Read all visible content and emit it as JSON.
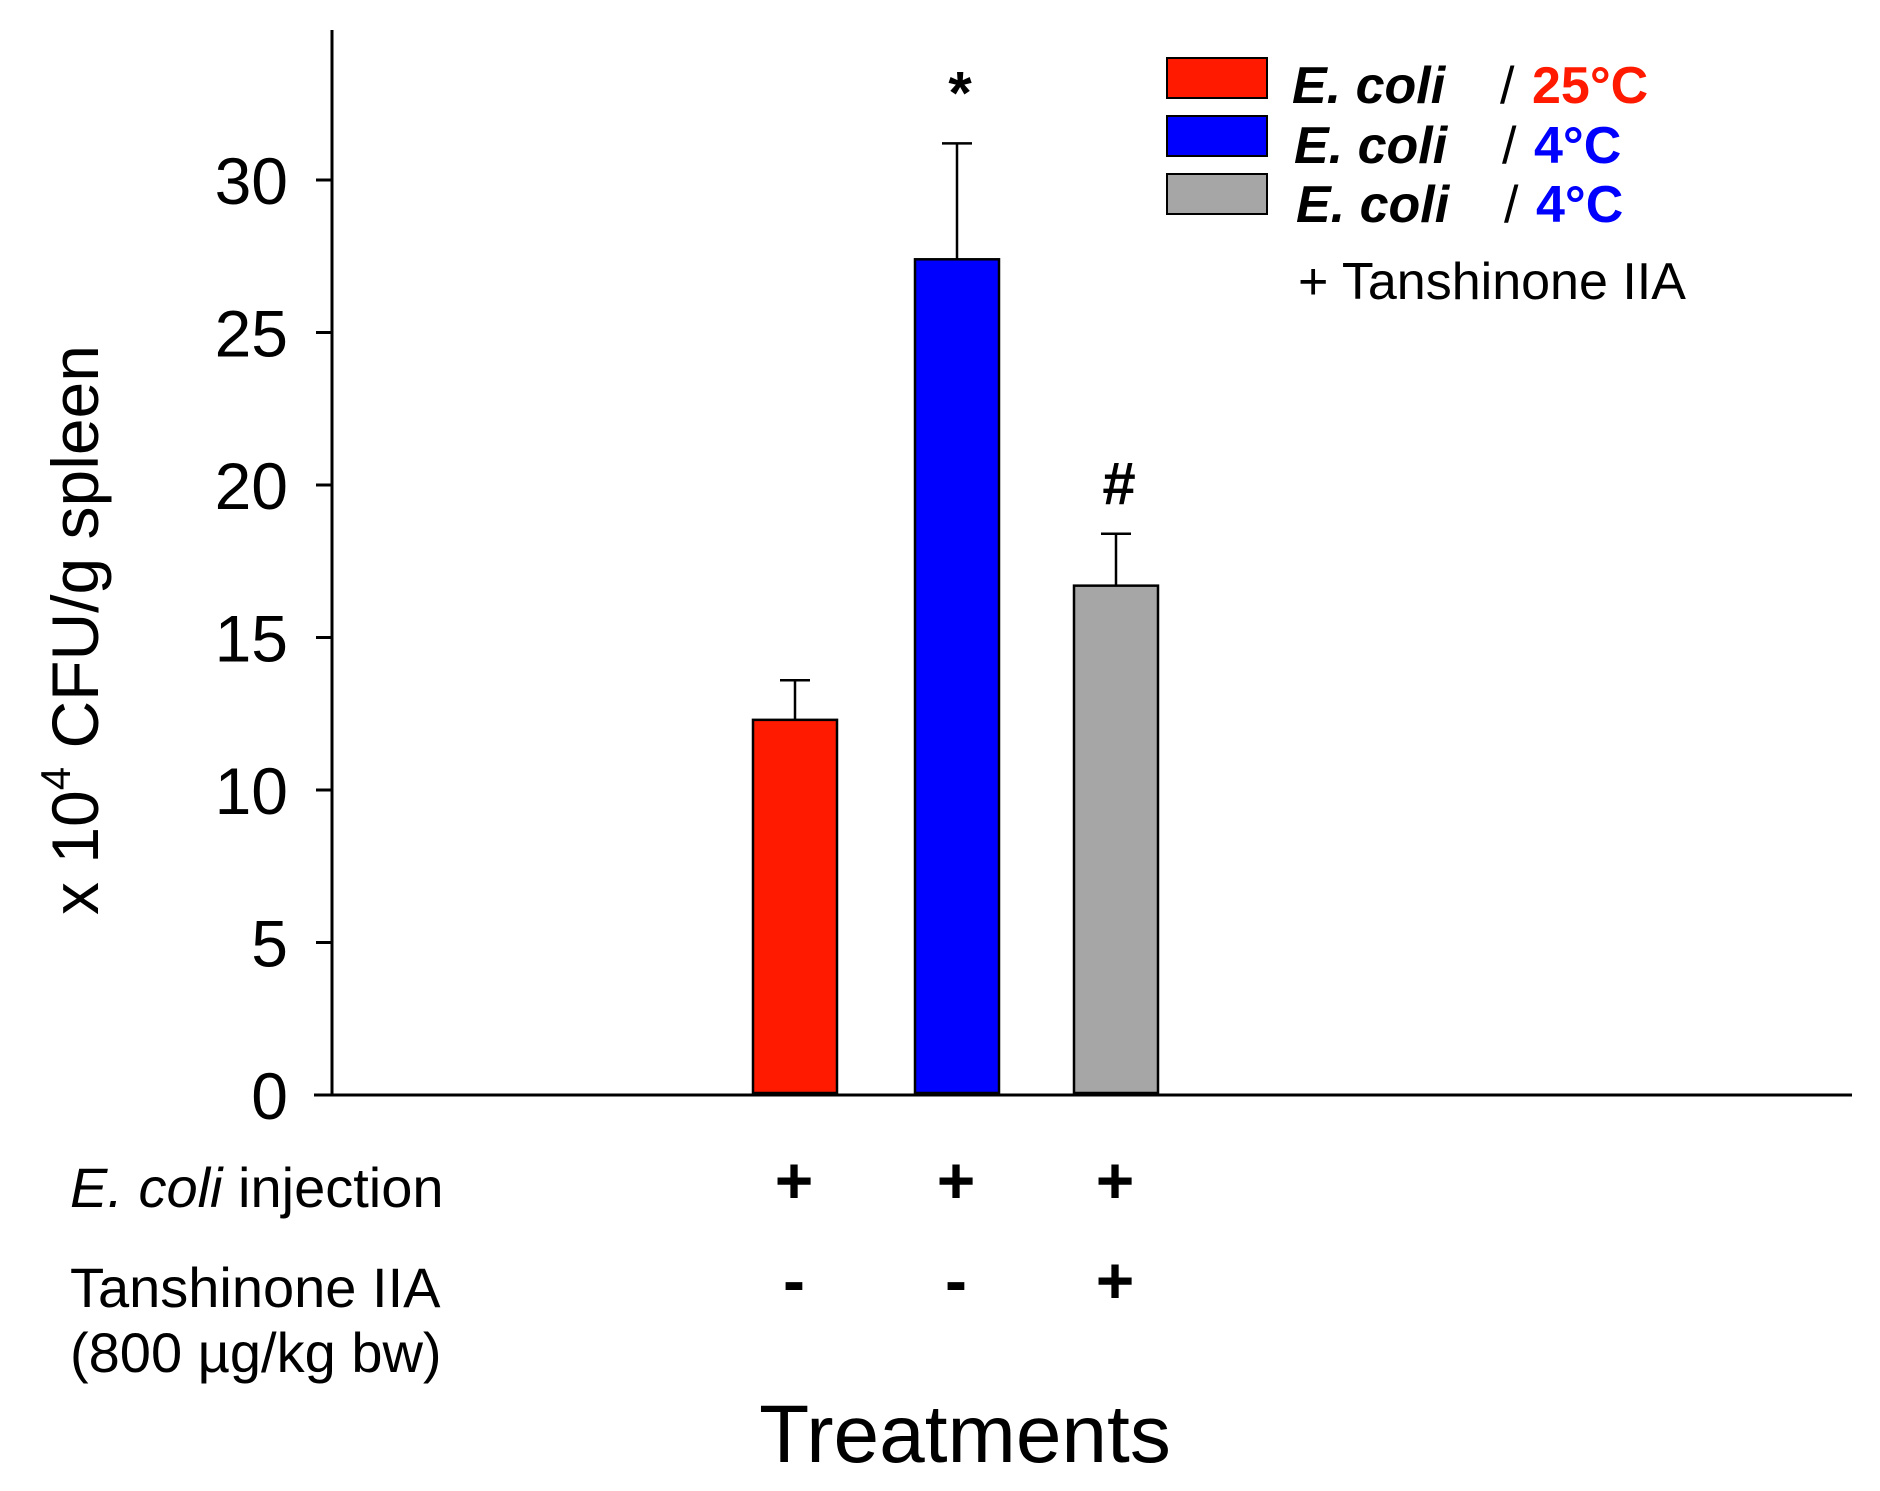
{
  "chart_data": {
    "type": "bar",
    "categories": [
      "E. coli / 25°C",
      "E. coli / 4°C",
      "E. coli / 4°C + Tanshinone IIA"
    ],
    "values": [
      12.3,
      27.4,
      16.7
    ],
    "errors": [
      1.3,
      3.8,
      1.7
    ],
    "colors": [
      "#ff1a00",
      "#0000ff",
      "#a6a6a6"
    ],
    "significance": [
      "",
      "*",
      "#"
    ],
    "ylabel_prefix": "x 10",
    "ylabel_sup": "4",
    "ylabel_suffix": " CFU/g spleen",
    "xlabel": "Treatments",
    "ylim": [
      0,
      35
    ],
    "yticks": [
      0,
      5,
      10,
      15,
      20,
      25,
      30
    ],
    "treatment_rows": [
      {
        "label_italic": "E. coli",
        "label_rest": " injection",
        "signs": [
          "+",
          "+",
          "+"
        ]
      },
      {
        "label_line1": "Tanshinone IIA",
        "label_line2": "(800 µg/kg bw)",
        "signs": [
          "-",
          "-",
          "+"
        ]
      }
    ],
    "legend": [
      {
        "organism": "E. coli",
        "sep": "/",
        "temp": "25°C",
        "temp_color": "#ff1a00",
        "color": "#ff1a00"
      },
      {
        "organism": "E. coli",
        "sep": "/",
        "temp": "4°C",
        "temp_color": "#0000ff",
        "color": "#0000ff"
      },
      {
        "organism": "E. coli",
        "sep": "/",
        "temp": "4°C",
        "temp_color": "#0000ff",
        "color": "#a6a6a6",
        "extra": "+ Tanshinone IIA"
      }
    ]
  }
}
